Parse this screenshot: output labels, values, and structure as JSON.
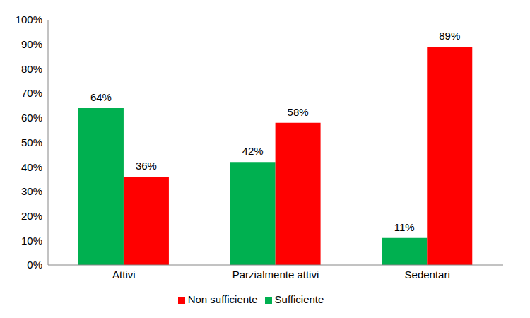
{
  "chart_data": {
    "type": "bar",
    "categories": [
      "Attivi",
      "Parzialmente attivi",
      "Sedentari"
    ],
    "series": [
      {
        "name": "Sufficiente",
        "color": "#00b050",
        "values": [
          64,
          42,
          11
        ],
        "value_labels": [
          "64%",
          "42%",
          "11%"
        ]
      },
      {
        "name": "Non sufficiente",
        "color": "#ff0000",
        "values": [
          36,
          58,
          89
        ],
        "value_labels": [
          "36%",
          "58%",
          "89%"
        ]
      }
    ],
    "ylim": [
      0,
      100
    ],
    "yticks": [
      {
        "value": 0,
        "label": "0%"
      },
      {
        "value": 10,
        "label": "10%"
      },
      {
        "value": 20,
        "label": "20%"
      },
      {
        "value": 30,
        "label": "30%"
      },
      {
        "value": 40,
        "label": "40%"
      },
      {
        "value": 50,
        "label": "50%"
      },
      {
        "value": 60,
        "label": "60%"
      },
      {
        "value": 70,
        "label": "70%"
      },
      {
        "value": 80,
        "label": "80%"
      },
      {
        "value": 90,
        "label": "90%"
      },
      {
        "value": 100,
        "label": "100%"
      }
    ],
    "grid": false,
    "legend": "bottom",
    "data_labels": true
  }
}
